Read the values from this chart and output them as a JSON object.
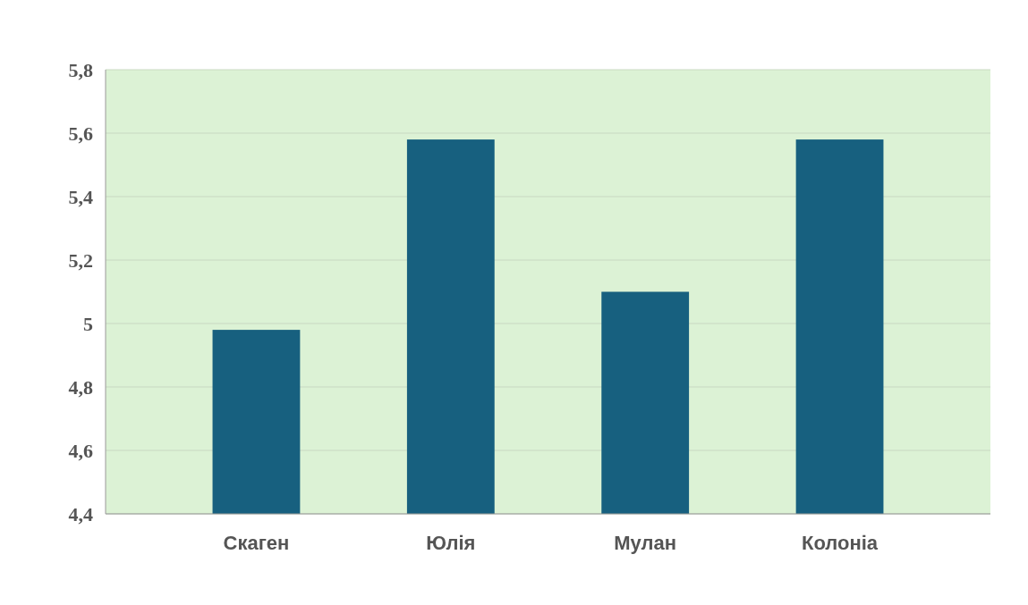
{
  "chart_data": {
    "type": "bar",
    "categories": [
      "Скаген",
      "Юлія",
      "Мулан",
      "Колоніа"
    ],
    "values": [
      4.98,
      5.58,
      5.1,
      5.58
    ],
    "color": "#17607f",
    "ylim": [
      4.4,
      5.8
    ],
    "yticks": [
      {
        "value": 4.4,
        "label": "4,4"
      },
      {
        "value": 4.6,
        "label": "4,6"
      },
      {
        "value": 4.8,
        "label": "4,8"
      },
      {
        "value": 5,
        "label": "5"
      },
      {
        "value": 5.2,
        "label": "5,2"
      },
      {
        "value": 5.4,
        "label": "5,4"
      },
      {
        "value": 5.6,
        "label": "5,6"
      },
      {
        "value": 5.8,
        "label": "5,8"
      }
    ],
    "grid": true
  }
}
